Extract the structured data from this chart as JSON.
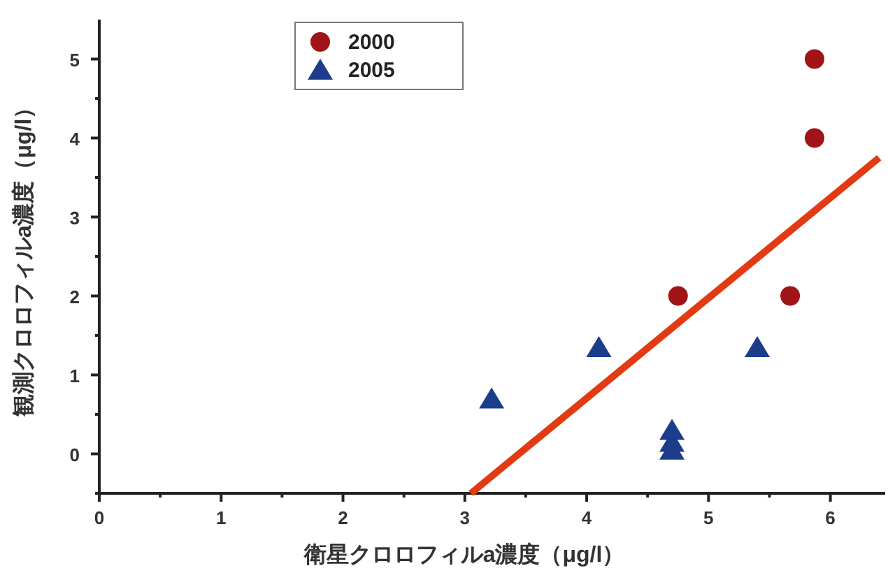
{
  "chart_data": {
    "type": "scatter",
    "xlabel": "衛星クロロフィルa濃度（μg/l）",
    "ylabel": "観測クロロフィルa濃度（μg/l）",
    "xlim": [
      0,
      6.45
    ],
    "ylim": [
      -0.5,
      5.5
    ],
    "xticks": [
      0,
      {
        "value": 0.5,
        "label": null
      },
      1,
      {
        "value": 1.5,
        "label": null
      },
      2,
      {
        "value": 2.5,
        "label": null
      },
      3,
      {
        "value": 3.5,
        "label": null
      },
      4,
      {
        "value": 4.5,
        "label": null
      },
      5,
      {
        "value": 5.5,
        "label": null
      },
      6
    ],
    "yticks": [
      {
        "value": -0.5,
        "label": null
      },
      0,
      {
        "value": 0.5,
        "label": null
      },
      1,
      {
        "value": 1.5,
        "label": null
      },
      2,
      {
        "value": 2.5,
        "label": null
      },
      3,
      {
        "value": 3.5,
        "label": null
      },
      4,
      {
        "value": 4.5,
        "label": null
      },
      5
    ],
    "grid": false,
    "legend": "top left",
    "series": [
      {
        "name": "2000",
        "color": "#a01418",
        "marker": "circle",
        "x": [
          5.87,
          5.87,
          4.75,
          5.67
        ],
        "values": [
          5.0,
          4.0,
          2.0,
          2.0
        ]
      },
      {
        "name": "2005",
        "color": "#1c3c8c",
        "marker": "triangle",
        "x": [
          3.22,
          4.1,
          5.4,
          4.7,
          4.7,
          4.7
        ],
        "values": [
          0.7,
          1.35,
          1.35,
          0.3,
          0.15,
          0.05
        ]
      },
      {
        "type": "line",
        "color": "#e23a12",
        "marker": "none",
        "x": [
          3.05,
          6.4
        ],
        "values": [
          -0.5,
          3.75
        ]
      }
    ]
  }
}
